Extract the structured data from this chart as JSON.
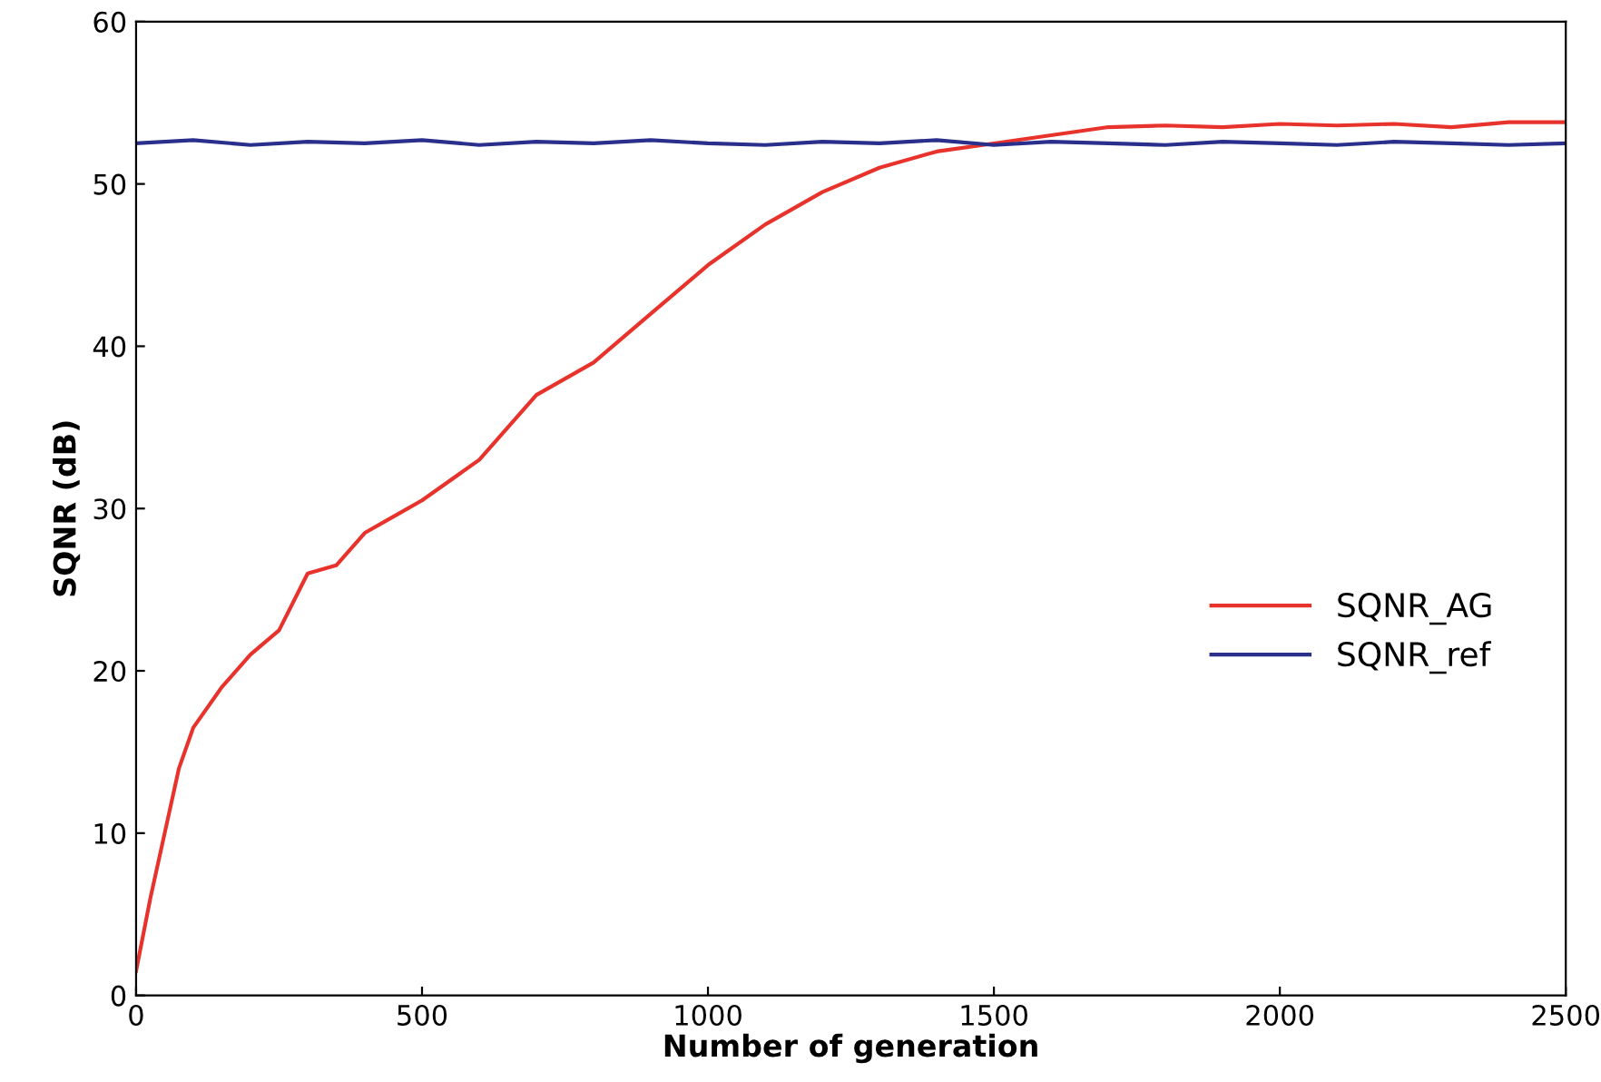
{
  "chart_data": {
    "type": "line",
    "xlabel": "Number of generation",
    "ylabel": "SQNR (dB)",
    "xlim": [
      0,
      2500
    ],
    "ylim": [
      0,
      60
    ],
    "xticks": [
      0,
      500,
      1000,
      1500,
      2000,
      2500
    ],
    "yticks": [
      0,
      10,
      20,
      30,
      40,
      50,
      60
    ],
    "grid": false,
    "legend": "bottom right",
    "series": [
      {
        "name": "SQNR_AG",
        "color": "#e8322c",
        "x": [
          0,
          25,
          50,
          75,
          100,
          150,
          200,
          250,
          300,
          350,
          400,
          450,
          500,
          600,
          650,
          700,
          800,
          900,
          1000,
          1100,
          1200,
          1300,
          1400,
          1500,
          1600,
          1700,
          1800,
          1900,
          2000,
          2100,
          2200,
          2300,
          2400,
          2500
        ],
        "values": [
          1.5,
          6,
          10,
          14,
          16.5,
          19,
          21,
          22.5,
          26,
          26.5,
          28.5,
          29.5,
          30.5,
          33,
          35,
          37,
          39,
          42,
          45,
          47.5,
          49.5,
          51,
          52,
          52.5,
          53,
          53.5,
          53.6,
          53.5,
          53.7,
          53.6,
          53.7,
          53.5,
          53.8,
          53.8
        ]
      },
      {
        "name": "SQNR_ref",
        "color": "#2b2f8c",
        "x": [
          0,
          100,
          200,
          300,
          400,
          500,
          600,
          700,
          800,
          900,
          1000,
          1100,
          1200,
          1300,
          1400,
          1500,
          1600,
          1700,
          1800,
          1900,
          2000,
          2100,
          2200,
          2300,
          2400,
          2500
        ],
        "values": [
          52.5,
          52.7,
          52.4,
          52.6,
          52.5,
          52.7,
          52.4,
          52.6,
          52.5,
          52.7,
          52.5,
          52.4,
          52.6,
          52.5,
          52.7,
          52.4,
          52.6,
          52.5,
          52.4,
          52.6,
          52.5,
          52.4,
          52.6,
          52.5,
          52.4,
          52.5
        ]
      }
    ]
  }
}
